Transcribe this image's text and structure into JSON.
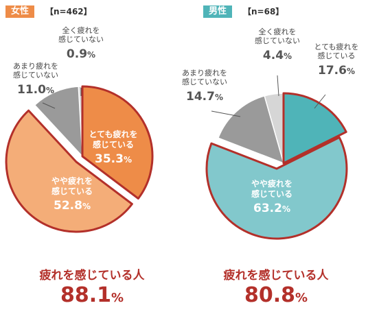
{
  "chart_data": [
    {
      "type": "pie",
      "group_label": "女性",
      "sample_size": "【n=462】",
      "slices": [
        {
          "label": [
            "とても疲れを",
            "感じている"
          ],
          "value": 35.3,
          "display": "35.3",
          "color": "#ee8c48"
        },
        {
          "label": [
            "やや疲れを",
            "感じている"
          ],
          "value": 52.8,
          "display": "52.8",
          "color": "#f4ad78"
        },
        {
          "label": [
            "あまり疲れを",
            "感じていない"
          ],
          "value": 11.0,
          "display": "11.0",
          "color": "#9a9a9a"
        },
        {
          "label": [
            "全く疲れを",
            "感じていない"
          ],
          "value": 0.9,
          "display": "0.9",
          "color": "#d6d6d6"
        }
      ],
      "summary_title": "疲れを感じている人",
      "summary_value": "88.1",
      "unit": "%",
      "accent": "#ee8c48"
    },
    {
      "type": "pie",
      "group_label": "男性",
      "sample_size": "【n=68】",
      "slices": [
        {
          "label": [
            "とても疲れを",
            "感じている"
          ],
          "value": 17.6,
          "display": "17.6",
          "color": "#4fb4b8"
        },
        {
          "label": [
            "やや疲れを",
            "感じている"
          ],
          "value": 63.2,
          "display": "63.2",
          "color": "#82c8cc"
        },
        {
          "label": [
            "あまり疲れを",
            "感じていない"
          ],
          "value": 14.7,
          "display": "14.7",
          "color": "#9a9a9a"
        },
        {
          "label": [
            "全く疲れを",
            "感じていない"
          ],
          "value": 4.4,
          "display": "4.4",
          "color": "#d6d6d6"
        }
      ],
      "summary_title": "疲れを感じている人",
      "summary_value": "80.8",
      "unit": "%",
      "accent": "#4fb4b8"
    }
  ],
  "colors": {
    "highlight_border": "#b3302a",
    "summary_text": "#b3302a"
  }
}
